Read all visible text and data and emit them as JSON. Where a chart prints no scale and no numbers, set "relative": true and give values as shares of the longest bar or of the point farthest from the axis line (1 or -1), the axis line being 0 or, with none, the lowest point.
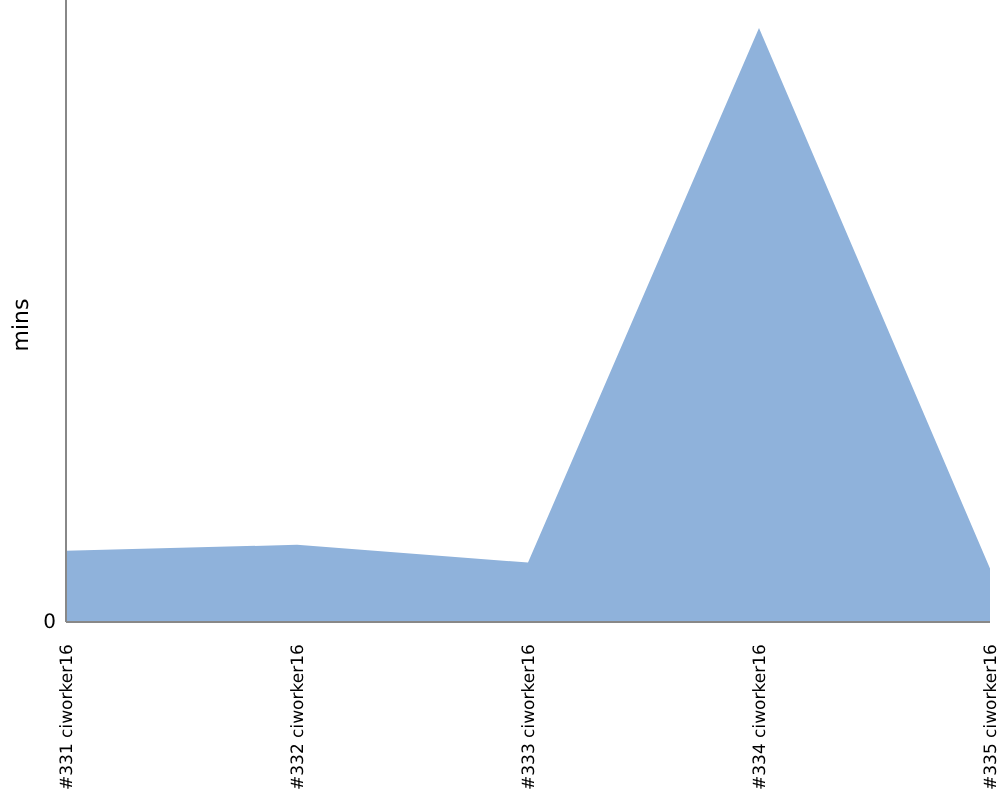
{
  "chart_data": {
    "type": "area",
    "ylabel": "mins",
    "relative": true,
    "categories": [
      "#331 ciworker16",
      "#332 ciworker16",
      "#333 ciworker16",
      "#334 ciworker16",
      "#335 ciworker16"
    ],
    "values": [
      0.12,
      0.13,
      0.1,
      1,
      0.09
    ],
    "color": "#8fb2db",
    "annotations": [
      "0"
    ]
  }
}
